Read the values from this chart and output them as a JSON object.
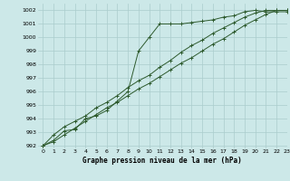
{
  "title": "Graphe pression niveau de la mer (hPa)",
  "bg_color": "#cce8e8",
  "grid_color": "#aacccc",
  "line_color": "#2d5a2d",
  "xlim": [
    -0.5,
    23
  ],
  "ylim": [
    991.8,
    1002.5
  ],
  "yticks": [
    992,
    993,
    994,
    995,
    996,
    997,
    998,
    999,
    1000,
    1001,
    1002
  ],
  "xticks": [
    0,
    1,
    2,
    3,
    4,
    5,
    6,
    7,
    8,
    9,
    10,
    11,
    12,
    13,
    14,
    15,
    16,
    17,
    18,
    19,
    20,
    21,
    22,
    23
  ],
  "series": [
    [
      992.0,
      992.4,
      993.1,
      993.2,
      994.0,
      994.2,
      994.6,
      995.3,
      996.0,
      999.0,
      1000.0,
      1001.0,
      1001.0,
      1001.0,
      1001.1,
      1001.2,
      1001.3,
      1001.5,
      1001.6,
      1001.9,
      1002.0,
      1001.9,
      1001.9,
      1001.9
    ],
    [
      992.0,
      992.8,
      993.4,
      993.8,
      994.2,
      994.8,
      995.2,
      995.7,
      996.3,
      996.8,
      997.2,
      997.8,
      998.3,
      998.9,
      999.4,
      999.8,
      1000.3,
      1000.7,
      1001.1,
      1001.5,
      1001.8,
      1002.0,
      1002.0,
      1002.0
    ],
    [
      992.0,
      992.3,
      992.8,
      993.3,
      993.8,
      994.3,
      994.8,
      995.2,
      995.7,
      996.2,
      996.6,
      997.1,
      997.6,
      998.1,
      998.5,
      999.0,
      999.5,
      999.9,
      1000.4,
      1000.9,
      1001.3,
      1001.7,
      1002.0,
      1002.0
    ]
  ]
}
